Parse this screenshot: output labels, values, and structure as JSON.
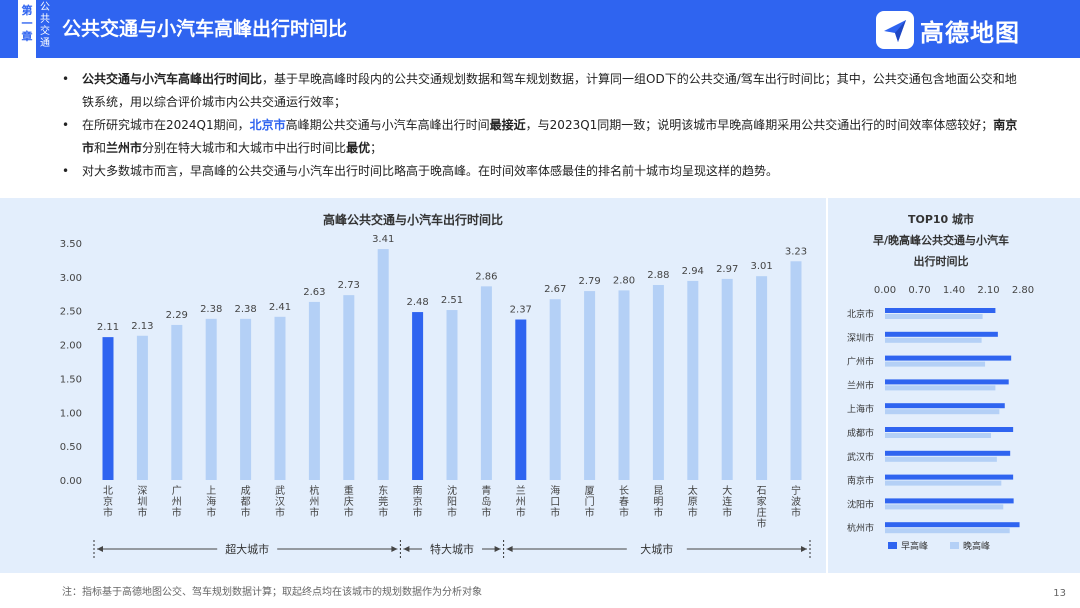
{
  "header": {
    "chapter": "第一章",
    "chapter_sub": "公共交通",
    "title": "公共交通与小汽车高峰出行时间比",
    "brand": "高德地图"
  },
  "bullets": [
    [
      {
        "t": "公共交通与小汽车高峰出行时间比",
        "s": "b"
      },
      {
        "t": "，基于早晚高峰时段内的公共交通规划数据和驾车规划数据，计算同一组OD下的公共交通/驾车出行时间比；其中，公共交通包含地面公交和地铁系统，用以综合评价城市内公共交通运行效率；",
        "s": ""
      }
    ],
    [
      {
        "t": "在所研究城市在2024Q1期间，",
        "s": ""
      },
      {
        "t": "北京市",
        "s": "hl"
      },
      {
        "t": "高峰期公共交通与小汽车高峰出行时间",
        "s": ""
      },
      {
        "t": "最接近",
        "s": "b"
      },
      {
        "t": "，与2023Q1同期一致；说明该城市早晚高峰期采用公共交通出行的时间效率体感较好；",
        "s": ""
      },
      {
        "t": "南京市",
        "s": "b"
      },
      {
        "t": "和",
        "s": ""
      },
      {
        "t": "兰州市",
        "s": "b"
      },
      {
        "t": "分别在特大城市和大城市中出行时间比",
        "s": ""
      },
      {
        "t": "最优",
        "s": "b"
      },
      {
        "t": "；",
        "s": ""
      }
    ],
    [
      {
        "t": "对大多数城市而言，早高峰的公共交通与小汽车出行时间比略高于晚高峰。在时间效率体感最佳的排名前十城市均呈现这样的趋势。",
        "s": ""
      }
    ]
  ],
  "chart_data": [
    {
      "type": "bar",
      "title": "高峰公共交通与小汽车出行时间比",
      "categories": [
        "北京市",
        "深圳市",
        "广州市",
        "上海市",
        "成都市",
        "武汉市",
        "杭州市",
        "重庆市",
        "东莞市",
        "南京市",
        "沈阳市",
        "青岛市",
        "兰州市",
        "海口市",
        "厦门市",
        "长春市",
        "昆明市",
        "太原市",
        "大连市",
        "石家庄市",
        "宁波市"
      ],
      "values": [
        2.11,
        2.13,
        2.29,
        2.38,
        2.38,
        2.41,
        2.63,
        2.73,
        3.41,
        2.48,
        2.51,
        2.86,
        2.37,
        2.67,
        2.79,
        2.8,
        2.88,
        2.94,
        2.97,
        3.01,
        3.23
      ],
      "value_labels": [
        "2.11",
        "2.13",
        "2.29",
        "2.38",
        "2.38",
        "2.41",
        "2.63",
        "2.73",
        "3.41",
        "2.48",
        "2.51",
        "2.86",
        "2.37",
        "2.67",
        "2.79",
        "2.80",
        "2.88",
        "2.94",
        "2.97",
        "3.01",
        "3.23"
      ],
      "highlight": [
        "北京市",
        "南京市",
        "兰州市"
      ],
      "yticks": [
        "0.00",
        "0.50",
        "1.00",
        "1.50",
        "2.00",
        "2.50",
        "3.00",
        "3.50"
      ],
      "ylim": [
        0,
        3.5
      ],
      "groups": [
        {
          "label": "超大城市",
          "start": 0,
          "end": 8
        },
        {
          "label": "特大城市",
          "start": 9,
          "end": 11
        },
        {
          "label": "大城市",
          "start": 12,
          "end": 20
        }
      ],
      "grid": false,
      "colors": {
        "bar": "#b4d0f6",
        "highlight": "#2f64f0"
      }
    },
    {
      "type": "bar",
      "orientation": "horizontal",
      "title": [
        "TOP10 城市",
        "早/晚高峰公共交通与小汽车",
        "出行时间比"
      ],
      "categories": [
        "北京市",
        "深圳市",
        "广州市",
        "兰州市",
        "上海市",
        "成都市",
        "武汉市",
        "南京市",
        "沈阳市",
        "杭州市"
      ],
      "series": [
        {
          "name": "早高峰",
          "values": [
            2.24,
            2.29,
            2.56,
            2.51,
            2.43,
            2.6,
            2.54,
            2.6,
            2.61,
            2.73
          ],
          "color": "#2f64f0"
        },
        {
          "name": "晚高峰",
          "values": [
            1.98,
            1.96,
            2.03,
            2.24,
            2.32,
            2.15,
            2.27,
            2.36,
            2.4,
            2.53
          ],
          "color": "#b4d0f6"
        }
      ],
      "xticks": [
        "0.00",
        "0.70",
        "1.40",
        "2.10",
        "2.80"
      ],
      "xlim": [
        0,
        2.8
      ],
      "legend": "bottom"
    }
  ],
  "note": "注：指标基于高德地图公交、驾车规划数据计算；取起终点均在该城市的规划数据作为分析对象",
  "page_number": "13"
}
